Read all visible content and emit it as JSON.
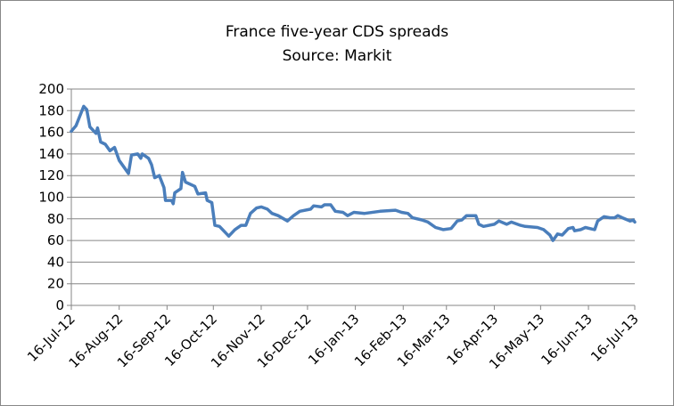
{
  "chart_data": {
    "type": "line",
    "title": "France five-year CDS spreads",
    "subtitle": "Source: Markit",
    "xlabel": "",
    "ylabel": "",
    "ylim": [
      0,
      200
    ],
    "yticks": [
      "0",
      "20",
      "40",
      "60",
      "80",
      "100",
      "120",
      "140",
      "160",
      "180",
      "200"
    ],
    "xlim": [
      "2012-07-16",
      "2013-07-16"
    ],
    "xticks": [
      {
        "date": "2012-07-16",
        "label": "16-Jul-12"
      },
      {
        "date": "2012-08-16",
        "label": "16-Aug-12"
      },
      {
        "date": "2012-09-16",
        "label": "16-Sep-12"
      },
      {
        "date": "2012-10-16",
        "label": "16-Oct-12"
      },
      {
        "date": "2012-11-16",
        "label": "16-Nov-12"
      },
      {
        "date": "2012-12-16",
        "label": "16-Dec-12"
      },
      {
        "date": "2013-01-16",
        "label": "16-Jan-13"
      },
      {
        "date": "2013-02-16",
        "label": "16-Feb-13"
      },
      {
        "date": "2013-03-16",
        "label": "16-Mar-13"
      },
      {
        "date": "2013-04-16",
        "label": "16-Apr-13"
      },
      {
        "date": "2013-05-16",
        "label": "16-May-13"
      },
      {
        "date": "2013-06-16",
        "label": "16-Jun-13"
      },
      {
        "date": "2013-07-16",
        "label": "16-Jul-13"
      }
    ],
    "grid": true,
    "legend": "none",
    "line_color": "#4A7EBB",
    "series": [
      {
        "x": [
          "2012-07-16",
          "2012-07-19",
          "2012-07-24",
          "2012-07-26",
          "2012-07-28",
          "2012-08-01",
          "2012-08-02",
          "2012-08-04",
          "2012-08-07",
          "2012-08-10",
          "2012-08-13",
          "2012-08-16",
          "2012-08-22",
          "2012-08-24",
          "2012-08-28",
          "2012-08-30",
          "2012-08-31",
          "2012-09-04",
          "2012-09-06",
          "2012-09-08",
          "2012-09-11",
          "2012-09-14",
          "2012-09-15",
          "2012-09-19",
          "2012-09-20",
          "2012-09-21",
          "2012-09-25",
          "2012-09-26",
          "2012-09-28",
          "2012-10-04",
          "2012-10-06",
          "2012-10-11",
          "2012-10-12",
          "2012-10-15",
          "2012-10-17",
          "2012-10-20",
          "2012-10-26",
          "2012-10-30",
          "2012-11-03",
          "2012-11-06",
          "2012-11-09",
          "2012-11-13",
          "2012-11-16",
          "2012-11-20",
          "2012-11-23",
          "2012-11-27",
          "2012-12-03",
          "2012-12-07",
          "2012-12-11",
          "2012-12-18",
          "2012-12-20",
          "2012-12-25",
          "2012-12-27",
          "2012-12-31",
          "2013-01-03",
          "2013-01-08",
          "2013-01-11",
          "2013-01-15",
          "2013-01-22",
          "2013-02-01",
          "2013-02-11",
          "2013-02-15",
          "2013-02-19",
          "2013-02-22",
          "2013-02-28",
          "2013-03-04",
          "2013-03-09",
          "2013-03-14",
          "2013-03-19",
          "2013-03-23",
          "2013-03-26",
          "2013-03-29",
          "2013-04-04",
          "2013-04-06",
          "2013-04-09",
          "2013-04-16",
          "2013-04-19",
          "2013-04-24",
          "2013-04-27",
          "2013-05-03",
          "2013-05-06",
          "2013-05-14",
          "2013-05-18",
          "2013-05-22",
          "2013-05-24",
          "2013-05-27",
          "2013-05-30",
          "2013-06-03",
          "2013-06-06",
          "2013-06-07",
          "2013-06-11",
          "2013-06-14",
          "2013-06-20",
          "2013-06-22",
          "2013-06-26",
          "2013-06-30",
          "2013-07-03",
          "2013-07-05",
          "2013-07-08",
          "2013-07-13",
          "2013-07-15",
          "2013-07-16"
        ],
        "y": [
          161,
          166,
          184,
          181,
          165,
          159,
          164,
          151,
          149,
          143,
          146,
          134,
          122,
          139,
          140,
          136,
          140,
          136,
          130,
          118,
          120,
          109,
          97,
          97,
          94,
          104,
          108,
          123,
          114,
          110,
          103,
          104,
          97,
          95,
          74,
          73,
          64,
          70,
          74,
          74,
          85,
          90,
          91,
          89,
          85,
          83,
          78,
          83,
          87,
          89,
          92,
          91,
          93,
          93,
          87,
          86,
          83,
          86,
          85,
          87,
          88,
          86,
          85,
          81,
          79,
          77,
          72,
          70,
          71,
          78,
          79,
          83,
          83,
          75,
          73,
          75,
          78,
          75,
          77,
          74,
          73,
          72,
          70,
          65,
          60,
          66,
          65,
          71,
          72,
          69,
          70,
          72,
          70,
          78,
          82,
          81,
          81,
          83,
          81,
          78,
          79,
          77
        ]
      }
    ]
  }
}
